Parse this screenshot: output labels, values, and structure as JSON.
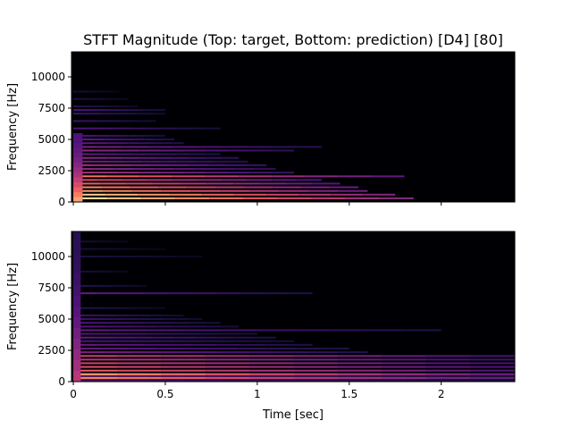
{
  "title": "STFT Magnitude (Top: target, Bottom: prediction) [D4] [80]",
  "colors": {
    "background": "#000004",
    "colormap": [
      "#000004",
      "#1d1147",
      "#51127c",
      "#822681",
      "#b73779",
      "#e75263",
      "#fc8961",
      "#fec287",
      "#fcfdbf"
    ]
  },
  "chart_data": [
    {
      "type": "heatmap",
      "panel": "top",
      "subtitle": "target",
      "colormap": "magma",
      "xlabel": "",
      "ylabel": "Frequency [Hz]",
      "xlim": [
        -0.01,
        2.4
      ],
      "ylim": [
        0,
        12000
      ],
      "xticks": [
        0,
        0.5,
        1,
        1.5,
        2
      ],
      "xticklabels": [],
      "yticks": [
        0,
        2500,
        5000,
        7500,
        10000
      ],
      "yticklabels": [
        "0",
        "2500",
        "5000",
        "7500",
        "10000"
      ],
      "harmonics": [
        {
          "freq": 294,
          "end": 1.85,
          "intensity": 0.95
        },
        {
          "freq": 587,
          "end": 1.75,
          "intensity": 0.9
        },
        {
          "freq": 880,
          "end": 1.6,
          "intensity": 0.8
        },
        {
          "freq": 1175,
          "end": 1.55,
          "intensity": 0.75
        },
        {
          "freq": 1470,
          "end": 1.45,
          "intensity": 0.65
        },
        {
          "freq": 1760,
          "end": 1.35,
          "intensity": 0.6
        },
        {
          "freq": 2050,
          "end": 1.8,
          "intensity": 0.7
        },
        {
          "freq": 2350,
          "end": 1.2,
          "intensity": 0.45
        },
        {
          "freq": 2640,
          "end": 1.1,
          "intensity": 0.4
        },
        {
          "freq": 2940,
          "end": 1.05,
          "intensity": 0.45
        },
        {
          "freq": 3230,
          "end": 0.95,
          "intensity": 0.35
        },
        {
          "freq": 3520,
          "end": 0.9,
          "intensity": 0.4
        },
        {
          "freq": 3820,
          "end": 0.8,
          "intensity": 0.3
        },
        {
          "freq": 4110,
          "end": 1.2,
          "intensity": 0.4
        },
        {
          "freq": 4400,
          "end": 1.35,
          "intensity": 0.35
        },
        {
          "freq": 4700,
          "end": 0.6,
          "intensity": 0.3
        },
        {
          "freq": 5000,
          "end": 0.55,
          "intensity": 0.3
        },
        {
          "freq": 5290,
          "end": 0.5,
          "intensity": 0.25
        },
        {
          "freq": 5880,
          "end": 0.8,
          "intensity": 0.25
        },
        {
          "freq": 6470,
          "end": 0.45,
          "intensity": 0.2
        },
        {
          "freq": 7060,
          "end": 0.5,
          "intensity": 0.2
        },
        {
          "freq": 7350,
          "end": 0.5,
          "intensity": 0.25
        },
        {
          "freq": 7640,
          "end": 0.35,
          "intensity": 0.15
        },
        {
          "freq": 8230,
          "end": 0.3,
          "intensity": 0.12
        },
        {
          "freq": 8820,
          "end": 0.25,
          "intensity": 0.1
        }
      ],
      "onset": {
        "start": 0.0,
        "end": 0.05,
        "maxfreq": 5500,
        "intensity": 0.8
      }
    },
    {
      "type": "heatmap",
      "panel": "bottom",
      "subtitle": "prediction",
      "colormap": "magma",
      "xlabel": "Time [sec]",
      "ylabel": "Frequency [Hz]",
      "xlim": [
        -0.01,
        2.4
      ],
      "ylim": [
        0,
        12000
      ],
      "xticks": [
        0,
        0.5,
        1,
        1.5,
        2
      ],
      "xticklabels": [
        "0",
        "0.5",
        "1",
        "1.5",
        "2"
      ],
      "yticks": [
        0,
        2500,
        5000,
        7500,
        10000
      ],
      "yticklabels": [
        "0",
        "2500",
        "5000",
        "7500",
        "10000"
      ],
      "harmonics": [
        {
          "freq": 294,
          "end": 2.4,
          "intensity": 0.75
        },
        {
          "freq": 587,
          "end": 2.4,
          "intensity": 0.8
        },
        {
          "freq": 880,
          "end": 2.4,
          "intensity": 0.65
        },
        {
          "freq": 1175,
          "end": 2.4,
          "intensity": 0.6
        },
        {
          "freq": 1470,
          "end": 2.4,
          "intensity": 0.55
        },
        {
          "freq": 1760,
          "end": 2.4,
          "intensity": 0.5
        },
        {
          "freq": 2050,
          "end": 2.4,
          "intensity": 0.55
        },
        {
          "freq": 2350,
          "end": 1.6,
          "intensity": 0.35
        },
        {
          "freq": 2640,
          "end": 1.5,
          "intensity": 0.3
        },
        {
          "freq": 2940,
          "end": 1.3,
          "intensity": 0.3
        },
        {
          "freq": 3230,
          "end": 1.2,
          "intensity": 0.25
        },
        {
          "freq": 3520,
          "end": 1.1,
          "intensity": 0.3
        },
        {
          "freq": 3820,
          "end": 1.0,
          "intensity": 0.25
        },
        {
          "freq": 4110,
          "end": 2.0,
          "intensity": 0.3
        },
        {
          "freq": 4400,
          "end": 0.9,
          "intensity": 0.25
        },
        {
          "freq": 4700,
          "end": 0.8,
          "intensity": 0.25
        },
        {
          "freq": 5000,
          "end": 0.7,
          "intensity": 0.2
        },
        {
          "freq": 5290,
          "end": 0.6,
          "intensity": 0.2
        },
        {
          "freq": 5880,
          "end": 0.5,
          "intensity": 0.15
        },
        {
          "freq": 7060,
          "end": 1.3,
          "intensity": 0.3
        },
        {
          "freq": 7650,
          "end": 0.4,
          "intensity": 0.15
        },
        {
          "freq": 8800,
          "end": 0.3,
          "intensity": 0.12
        },
        {
          "freq": 10000,
          "end": 0.7,
          "intensity": 0.12
        },
        {
          "freq": 10600,
          "end": 0.5,
          "intensity": 0.1
        },
        {
          "freq": 11200,
          "end": 0.3,
          "intensity": 0.1
        }
      ],
      "onset": {
        "start": 0.0,
        "end": 0.04,
        "maxfreq": 12000,
        "intensity": 0.5
      },
      "lowband": {
        "maxfreq": 700,
        "end": 2.4,
        "intensity": 0.3
      }
    }
  ]
}
